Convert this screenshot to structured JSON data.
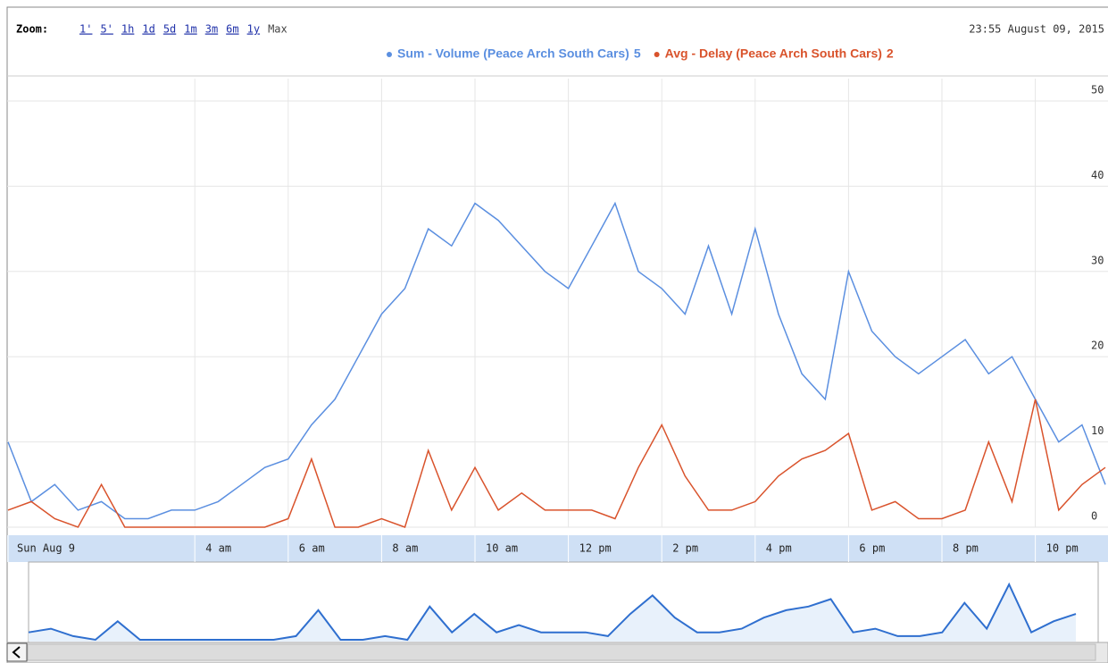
{
  "chart_data": {
    "type": "line",
    "zoom_label": "Zoom:",
    "zoom_options": [
      "1'",
      "5'",
      "1h",
      "1d",
      "5d",
      "1m",
      "3m",
      "6m",
      "1y",
      "Max"
    ],
    "date_label": "23:55 August 09, 2015",
    "legend_values": [
      5,
      2
    ],
    "x": [
      0,
      0.5,
      1,
      1.5,
      2,
      2.5,
      3,
      3.5,
      4,
      4.5,
      5,
      5.5,
      6,
      6.5,
      7,
      7.5,
      8,
      8.5,
      9,
      9.5,
      10,
      10.5,
      11,
      11.5,
      12,
      12.5,
      13,
      13.5,
      14,
      14.5,
      15,
      15.5,
      16,
      16.5,
      17,
      17.5,
      18,
      18.5,
      19,
      19.5,
      20,
      20.5,
      21,
      21.5,
      22,
      22.5,
      23,
      23.5
    ],
    "series": [
      {
        "name": "Sum - Volume (Peace Arch South Cars)",
        "color": "#5b8fe0",
        "values": [
          10,
          3,
          5,
          2,
          3,
          1,
          1,
          2,
          2,
          3,
          5,
          7,
          8,
          12,
          15,
          20,
          25,
          28,
          35,
          33,
          38,
          36,
          33,
          30,
          28,
          33,
          38,
          30,
          28,
          25,
          33,
          25,
          35,
          25,
          18,
          15,
          30,
          23,
          20,
          18,
          20,
          22,
          18,
          20,
          15,
          10,
          12,
          5
        ]
      },
      {
        "name": "Avg - Delay (Peace Arch South Cars)",
        "color": "#d9532c",
        "values": [
          2,
          3,
          1,
          0,
          5,
          0,
          0,
          0,
          0,
          0,
          0,
          0,
          1,
          8,
          0,
          0,
          1,
          0,
          9,
          2,
          7,
          2,
          4,
          2,
          2,
          2,
          1,
          7,
          12,
          6,
          2,
          2,
          3,
          6,
          8,
          9,
          11,
          2,
          3,
          1,
          1,
          2,
          10,
          3,
          15,
          2,
          5,
          7
        ]
      }
    ],
    "xlim": [
      0,
      24
    ],
    "xticks": [
      {
        "value": 0,
        "label": "Sun Aug 9"
      },
      {
        "value": 4,
        "label": "4 am"
      },
      {
        "value": 6,
        "label": "6 am"
      },
      {
        "value": 8,
        "label": "8 am"
      },
      {
        "value": 10,
        "label": "10 am"
      },
      {
        "value": 12,
        "label": "12 pm"
      },
      {
        "value": 14,
        "label": "2 pm"
      },
      {
        "value": 16,
        "label": "4 pm"
      },
      {
        "value": 18,
        "label": "6 pm"
      },
      {
        "value": 20,
        "label": "8 pm"
      },
      {
        "value": 22,
        "label": "10 pm"
      }
    ],
    "ylim": [
      0,
      52
    ],
    "yticks": [
      0,
      10,
      20,
      30,
      40,
      50
    ],
    "grid": true
  }
}
